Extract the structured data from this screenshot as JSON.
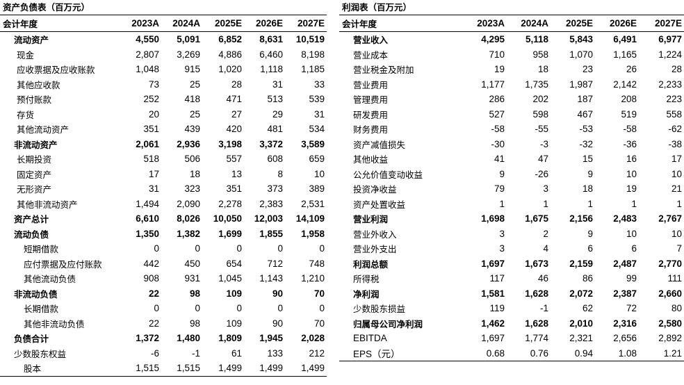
{
  "balance_sheet": {
    "title": "资产负债表（百万元）",
    "header": {
      "label": "会计年度",
      "years": [
        "2023A",
        "2024A",
        "2025E",
        "2026E",
        "2027E"
      ]
    },
    "rows": [
      {
        "label": "流动资产",
        "values": [
          "4,550",
          "5,091",
          "6,852",
          "8,631",
          "10,519"
        ],
        "style": "sec l3"
      },
      {
        "label": "现金",
        "values": [
          "2,807",
          "3,269",
          "4,886",
          "6,460",
          "8,198"
        ],
        "style": "l1"
      },
      {
        "label": "应收票据及应收账款",
        "values": [
          "1,048",
          "915",
          "1,020",
          "1,118",
          "1,185"
        ],
        "style": "l1"
      },
      {
        "label": "其他应收款",
        "values": [
          "73",
          "25",
          "28",
          "31",
          "33"
        ],
        "style": "l1"
      },
      {
        "label": "预付账款",
        "values": [
          "252",
          "418",
          "471",
          "513",
          "539"
        ],
        "style": "l1"
      },
      {
        "label": "存货",
        "values": [
          "20",
          "25",
          "27",
          "29",
          "31"
        ],
        "style": "l1"
      },
      {
        "label": "其他流动资产",
        "values": [
          "351",
          "439",
          "420",
          "481",
          "534"
        ],
        "style": "l1"
      },
      {
        "label": "非流动资产",
        "values": [
          "2,061",
          "2,936",
          "3,198",
          "3,372",
          "3,589"
        ],
        "style": "sec l3"
      },
      {
        "label": "长期投资",
        "values": [
          "518",
          "506",
          "557",
          "608",
          "659"
        ],
        "style": "l1"
      },
      {
        "label": "固定资产",
        "values": [
          "17",
          "18",
          "13",
          "8",
          "10"
        ],
        "style": "l1"
      },
      {
        "label": "无形资产",
        "values": [
          "31",
          "323",
          "351",
          "373",
          "389"
        ],
        "style": "l1"
      },
      {
        "label": "其他非流动资产",
        "values": [
          "1,494",
          "2,090",
          "2,278",
          "2,383",
          "2,531"
        ],
        "style": "l1"
      },
      {
        "label": "资产总计",
        "values": [
          "6,610",
          "8,026",
          "10,050",
          "12,003",
          "14,109"
        ],
        "style": "sec l3"
      },
      {
        "label": "流动负债",
        "values": [
          "1,350",
          "1,382",
          "1,699",
          "1,855",
          "1,958"
        ],
        "style": "sec l3"
      },
      {
        "label": "短期借款",
        "values": [
          "0",
          "0",
          "0",
          "0",
          "0"
        ],
        "style": "l2"
      },
      {
        "label": "应付票据及应付账款",
        "values": [
          "442",
          "450",
          "654",
          "712",
          "748"
        ],
        "style": "l2"
      },
      {
        "label": "其他流动负债",
        "values": [
          "908",
          "931",
          "1,045",
          "1,143",
          "1,210"
        ],
        "style": "l2"
      },
      {
        "label": "非流动负债",
        "values": [
          "22",
          "98",
          "109",
          "90",
          "70"
        ],
        "style": "sec l3"
      },
      {
        "label": "长期借款",
        "values": [
          "0",
          "0",
          "0",
          "0",
          "0"
        ],
        "style": "l2"
      },
      {
        "label": "其他非流动负债",
        "values": [
          "22",
          "98",
          "109",
          "90",
          "70"
        ],
        "style": "l2"
      },
      {
        "label": "负债合计",
        "values": [
          "1,372",
          "1,480",
          "1,809",
          "1,945",
          "2,028"
        ],
        "style": "sec l3"
      },
      {
        "label": "少数股东权益",
        "values": [
          "-6",
          "-1",
          "61",
          "133",
          "212"
        ],
        "style": "l3"
      },
      {
        "label": "股本",
        "values": [
          "1,515",
          "1,515",
          "1,499",
          "1,499",
          "1,499"
        ],
        "style": "l2"
      }
    ]
  },
  "income_statement": {
    "title": "利润表（百万元）",
    "header": {
      "label": "会计年度",
      "years": [
        "2023A",
        "2024A",
        "2025E",
        "2026E",
        "2027E"
      ]
    },
    "rows": [
      {
        "label": "营业收入",
        "values": [
          "4,295",
          "5,118",
          "5,843",
          "6,491",
          "6,977"
        ],
        "style": "sec l3"
      },
      {
        "label": "营业成本",
        "values": [
          "710",
          "958",
          "1,070",
          "1,165",
          "1,224"
        ],
        "style": "l3"
      },
      {
        "label": "营业税金及附加",
        "values": [
          "19",
          "18",
          "23",
          "26",
          "28"
        ],
        "style": "l3"
      },
      {
        "label": "营业费用",
        "values": [
          "1,177",
          "1,735",
          "1,987",
          "2,142",
          "2,233"
        ],
        "style": "l3"
      },
      {
        "label": "管理费用",
        "values": [
          "286",
          "202",
          "187",
          "208",
          "223"
        ],
        "style": "l3"
      },
      {
        "label": "研发费用",
        "values": [
          "527",
          "598",
          "467",
          "519",
          "558"
        ],
        "style": "l3"
      },
      {
        "label": "财务费用",
        "values": [
          "-58",
          "-55",
          "-53",
          "-58",
          "-62"
        ],
        "style": "l3"
      },
      {
        "label": "资产减值损失",
        "values": [
          "-30",
          "-3",
          "-32",
          "-36",
          "-38"
        ],
        "style": "l3"
      },
      {
        "label": "其他收益",
        "values": [
          "41",
          "47",
          "15",
          "16",
          "17"
        ],
        "style": "l3"
      },
      {
        "label": "公允价值变动收益",
        "values": [
          "9",
          "-26",
          "9",
          "10",
          "10"
        ],
        "style": "l3"
      },
      {
        "label": "投资净收益",
        "values": [
          "79",
          "3",
          "18",
          "19",
          "21"
        ],
        "style": "l3"
      },
      {
        "label": "资产处置收益",
        "values": [
          "1",
          "1",
          "1",
          "1",
          "1"
        ],
        "style": "l3"
      },
      {
        "label": "营业利润",
        "values": [
          "1,698",
          "1,675",
          "2,156",
          "2,483",
          "2,767"
        ],
        "style": "sec l3"
      },
      {
        "label": "营业外收入",
        "values": [
          "3",
          "2",
          "9",
          "10",
          "10"
        ],
        "style": "l3"
      },
      {
        "label": "营业外支出",
        "values": [
          "3",
          "4",
          "6",
          "6",
          "7"
        ],
        "style": "l3"
      },
      {
        "label": "利润总额",
        "values": [
          "1,697",
          "1,673",
          "2,159",
          "2,487",
          "2,770"
        ],
        "style": "sec l3"
      },
      {
        "label": "所得税",
        "values": [
          "117",
          "46",
          "86",
          "99",
          "111"
        ],
        "style": "l3"
      },
      {
        "label": "净利润",
        "values": [
          "1,581",
          "1,628",
          "2,072",
          "2,387",
          "2,660"
        ],
        "style": "sec l3"
      },
      {
        "label": "少数股东损益",
        "values": [
          "119",
          "-1",
          "62",
          "72",
          "80"
        ],
        "style": "l3"
      },
      {
        "label": "归属母公司净利润",
        "values": [
          "1,462",
          "1,628",
          "2,010",
          "2,316",
          "2,580"
        ],
        "style": "sec l3"
      },
      {
        "label": "EBITDA",
        "values": [
          "1,697",
          "1,774",
          "2,321",
          "2,656",
          "2,892"
        ],
        "style": "l3 latin"
      },
      {
        "label": "EPS（元）",
        "values": [
          "0.68",
          "0.76",
          "0.94",
          "1.08",
          "1.21"
        ],
        "style": "l3 latin"
      }
    ]
  }
}
